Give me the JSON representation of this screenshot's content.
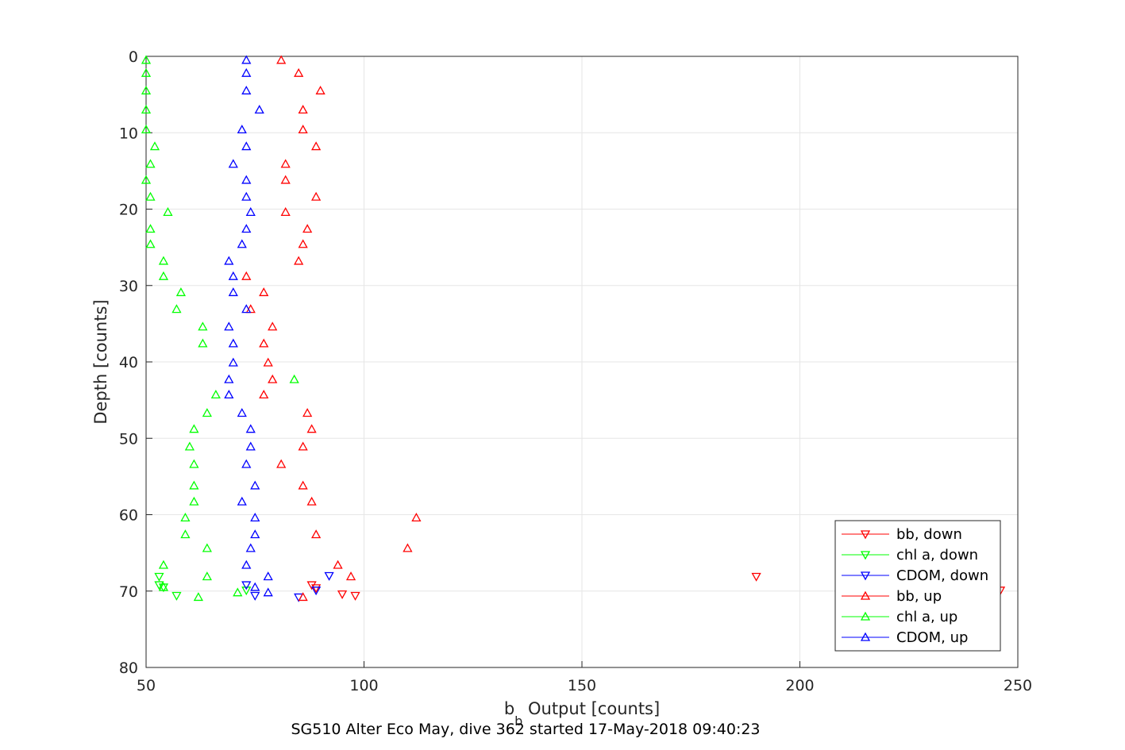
{
  "chart_data": {
    "type": "scatter",
    "xlabel_base": "b",
    "xlabel_sub": "b",
    "xlabel_rest": " Output [counts]",
    "ylabel": "Depth [counts]",
    "caption": "SG510 Alter Eco May, dive 362 started 17-May-2018 09:40:23",
    "xlim": [
      50,
      250
    ],
    "ylim": [
      0,
      80
    ],
    "y_reversed": true,
    "grid": true,
    "legend_position": "bottom-right",
    "xticks": [
      "50",
      "100",
      "150",
      "200",
      "250"
    ],
    "yticks": [
      "0",
      "10",
      "20",
      "30",
      "40",
      "50",
      "60",
      "70",
      "80"
    ],
    "series": [
      {
        "name": "bb, down",
        "color": "#ff0000",
        "marker": "triangle-down",
        "points": [
          [
            88,
            69.2
          ],
          [
            89,
            69.6
          ],
          [
            95,
            70.4
          ],
          [
            98,
            70.6
          ],
          [
            190,
            68.1
          ],
          [
            246,
            69.9
          ]
        ]
      },
      {
        "name": "chl a, down",
        "color": "#00ff00",
        "marker": "triangle-down",
        "points": [
          [
            53,
            68.1
          ],
          [
            53,
            69.2
          ],
          [
            54,
            69.5
          ],
          [
            57,
            70.6
          ],
          [
            73,
            69.9
          ]
        ]
      },
      {
        "name": "CDOM, down",
        "color": "#0000ff",
        "marker": "triangle-down",
        "points": [
          [
            73,
            69.2
          ],
          [
            75,
            70.6
          ],
          [
            85,
            70.8
          ],
          [
            89,
            69.9
          ],
          [
            92,
            68.0
          ]
        ]
      },
      {
        "name": "bb, up",
        "color": "#ff0000",
        "marker": "triangle-up",
        "points": [
          [
            81,
            0.5
          ],
          [
            85,
            2.2
          ],
          [
            90,
            4.5
          ],
          [
            86,
            7.0
          ],
          [
            86,
            9.6
          ],
          [
            89,
            11.8
          ],
          [
            82,
            14.1
          ],
          [
            82,
            16.2
          ],
          [
            89,
            18.4
          ],
          [
            82,
            20.4
          ],
          [
            87,
            22.6
          ],
          [
            86,
            24.6
          ],
          [
            85,
            26.8
          ],
          [
            73,
            28.8
          ],
          [
            77,
            30.9
          ],
          [
            74,
            33.1
          ],
          [
            79,
            35.4
          ],
          [
            77,
            37.6
          ],
          [
            78,
            40.1
          ],
          [
            79,
            42.3
          ],
          [
            77,
            44.3
          ],
          [
            87,
            46.7
          ],
          [
            88,
            48.8
          ],
          [
            86,
            51.1
          ],
          [
            81,
            53.4
          ],
          [
            86,
            56.2
          ],
          [
            88,
            58.3
          ],
          [
            112,
            60.4
          ],
          [
            89,
            62.6
          ],
          [
            110,
            64.4
          ],
          [
            94,
            66.6
          ],
          [
            97,
            68.1
          ],
          [
            86,
            70.8
          ]
        ]
      },
      {
        "name": "chl a, up",
        "color": "#00ff00",
        "marker": "triangle-up",
        "points": [
          [
            50,
            0.5
          ],
          [
            50,
            2.2
          ],
          [
            50,
            4.5
          ],
          [
            50,
            7.0
          ],
          [
            50,
            9.6
          ],
          [
            52,
            11.8
          ],
          [
            51,
            14.1
          ],
          [
            50,
            16.2
          ],
          [
            51,
            18.4
          ],
          [
            55,
            20.4
          ],
          [
            51,
            22.6
          ],
          [
            51,
            24.6
          ],
          [
            54,
            26.8
          ],
          [
            54,
            28.8
          ],
          [
            58,
            30.9
          ],
          [
            57,
            33.1
          ],
          [
            63,
            35.4
          ],
          [
            63,
            37.6
          ],
          [
            84,
            42.3
          ],
          [
            66,
            44.3
          ],
          [
            64,
            46.7
          ],
          [
            61,
            48.8
          ],
          [
            60,
            51.1
          ],
          [
            61,
            53.4
          ],
          [
            61,
            56.2
          ],
          [
            61,
            58.3
          ],
          [
            59,
            60.4
          ],
          [
            59,
            62.6
          ],
          [
            64,
            64.4
          ],
          [
            54,
            66.6
          ],
          [
            64,
            68.1
          ],
          [
            54,
            69.5
          ],
          [
            62,
            70.8
          ],
          [
            71,
            70.2
          ]
        ]
      },
      {
        "name": "CDOM, up",
        "color": "#0000ff",
        "marker": "triangle-up",
        "points": [
          [
            73,
            0.5
          ],
          [
            73,
            2.2
          ],
          [
            73,
            4.5
          ],
          [
            76,
            7.0
          ],
          [
            72,
            9.6
          ],
          [
            73,
            11.8
          ],
          [
            70,
            14.1
          ],
          [
            73,
            16.2
          ],
          [
            73,
            18.4
          ],
          [
            74,
            20.4
          ],
          [
            73,
            22.6
          ],
          [
            72,
            24.6
          ],
          [
            69,
            26.8
          ],
          [
            70,
            28.8
          ],
          [
            70,
            30.9
          ],
          [
            73,
            33.1
          ],
          [
            69,
            35.4
          ],
          [
            70,
            37.6
          ],
          [
            70,
            40.1
          ],
          [
            69,
            42.3
          ],
          [
            69,
            44.3
          ],
          [
            72,
            46.7
          ],
          [
            74,
            48.8
          ],
          [
            74,
            51.1
          ],
          [
            73,
            53.4
          ],
          [
            75,
            56.2
          ],
          [
            72,
            58.3
          ],
          [
            75,
            60.4
          ],
          [
            75,
            62.6
          ],
          [
            74,
            64.4
          ],
          [
            73,
            66.6
          ],
          [
            78,
            68.1
          ],
          [
            75,
            69.5
          ],
          [
            78,
            70.2
          ]
        ]
      }
    ]
  }
}
